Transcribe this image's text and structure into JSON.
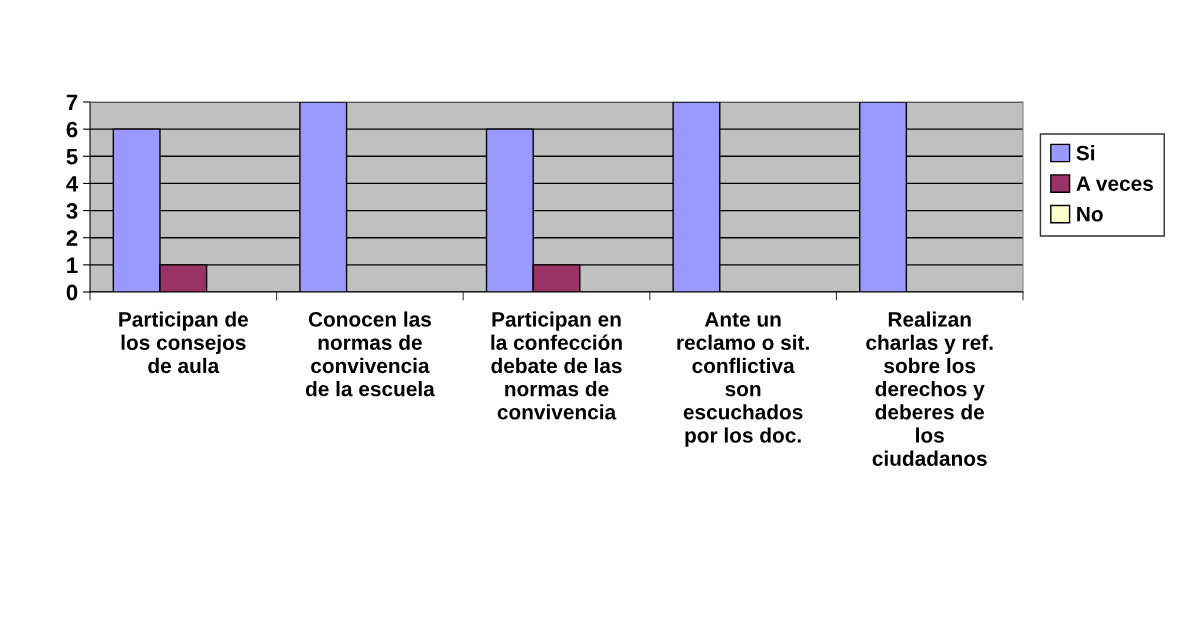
{
  "chart_data": {
    "type": "bar",
    "categories": [
      "Participan de\nlos consejos\nde aula",
      "Conocen las\nnormas de\nconvivencia\nde la escuela",
      "Participan en\nla confección\ndebate de las\nnormas de\nconvivencia",
      "Ante un\nreclamo o sit.\nconflictiva\nson\nescuchados\npor los doc.",
      "Realizan\ncharlas y ref.\nsobre los\nderechos y\ndeberes de\nlos\nciudadanos"
    ],
    "series": [
      {
        "name": "Si",
        "color": "#9999ff",
        "values": [
          6,
          7,
          6,
          7,
          7
        ]
      },
      {
        "name": "A veces",
        "color": "#993366",
        "values": [
          1,
          null,
          1,
          null,
          null
        ]
      },
      {
        "name": "No",
        "color": "#ffffcc",
        "values": [
          null,
          null,
          null,
          null,
          null
        ]
      }
    ],
    "ylim": [
      0,
      7
    ],
    "yticks": [
      0,
      1,
      2,
      3,
      4,
      5,
      6,
      7
    ],
    "grid": "y",
    "legend": "right"
  }
}
